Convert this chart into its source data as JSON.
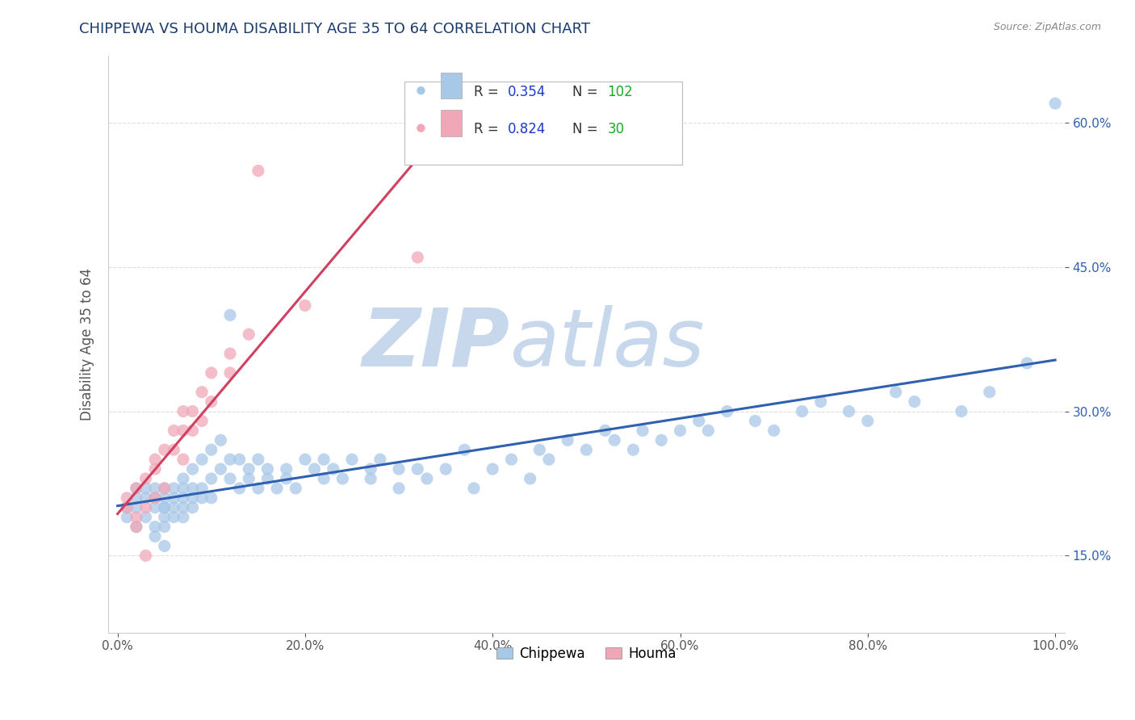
{
  "title": "CHIPPEWA VS HOUMA DISABILITY AGE 35 TO 64 CORRELATION CHART",
  "source": "Source: ZipAtlas.com",
  "xlabel": "",
  "ylabel": "Disability Age 35 to 64",
  "xlim": [
    -0.01,
    1.01
  ],
  "ylim": [
    0.07,
    0.67
  ],
  "xticks": [
    0.0,
    0.2,
    0.4,
    0.6,
    0.8,
    1.0
  ],
  "xticklabels": [
    "0.0%",
    "20.0%",
    "40.0%",
    "60.0%",
    "80.0%",
    "100.0%"
  ],
  "ytick_vals": [
    0.15,
    0.3,
    0.45,
    0.6
  ],
  "yticklabels": [
    "15.0%",
    "30.0%",
    "45.0%",
    "60.0%"
  ],
  "chippewa_color": "#a8c8e8",
  "houma_color": "#f0a8b8",
  "chippewa_line_color": "#3060b0",
  "houma_line_color": "#d04060",
  "R_chippewa": 0.354,
  "N_chippewa": 102,
  "R_houma": 0.824,
  "N_houma": 30,
  "legend_label_color": "#222222",
  "legend_R_color": "#1a3acc",
  "legend_N_color": "#1aaa22",
  "watermark_zip": "ZIP",
  "watermark_atlas": "atlas",
  "watermark_color": "#c8d8ec",
  "background_color": "#ffffff",
  "grid_color": "#dddddd",
  "title_color": "#1a3a6b",
  "source_color": "#888888"
}
